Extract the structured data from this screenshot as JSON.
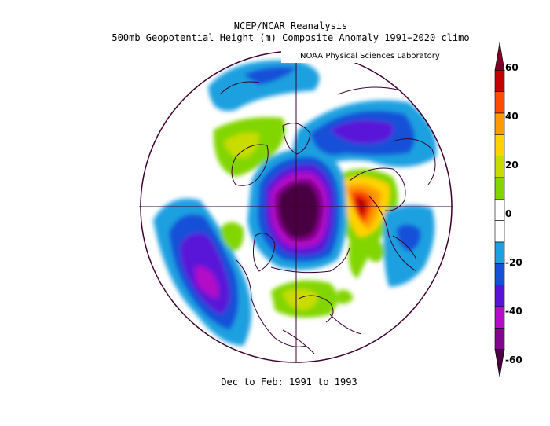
{
  "title": {
    "line1": "NCEP/NCAR Reanalysis",
    "line2": "500mb Geopotential Height (m) Composite Anomaly 1991−2020 climo"
  },
  "credit": "NOAA Physical Sciences Laboratory",
  "footer": "Dec to Feb: 1991 to 1993",
  "colorbar": {
    "labels": [
      "60",
      "40",
      "20",
      "0",
      "-20",
      "-40",
      "-60"
    ],
    "colors": [
      "#7f0026",
      "#c40000",
      "#ff4b00",
      "#ff9b00",
      "#ffd200",
      "#c8dc00",
      "#82d600",
      "#ffffff",
      "#ffffff",
      "#1ca0e0",
      "#1450d8",
      "#5a12d8",
      "#b40cc8",
      "#82068c",
      "#4a0040"
    ]
  },
  "map": {
    "projection": "north polar stereographic",
    "coastline_color": "#3d0030",
    "background": "#ffffff"
  }
}
